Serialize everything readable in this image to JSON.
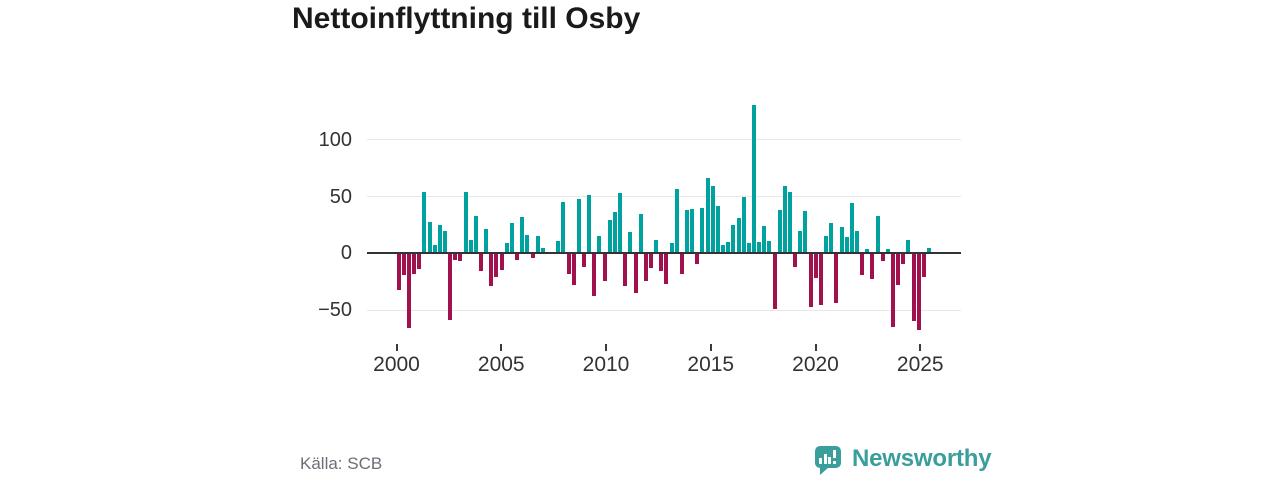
{
  "title": "Nettoinflyttning till Osby",
  "source": "Källa: SCB",
  "logo": {
    "text": "Newsworthy",
    "color": "#3a9e9c",
    "icon": "bar-chart-speech-bubble-icon"
  },
  "colors": {
    "positive_bar": "#00a2a0",
    "negative_bar": "#a0114d",
    "gridline": "#e7e7e7",
    "zero_line": "#333333",
    "axis_text": "#333333",
    "title_text": "#1a1a1a",
    "source_text": "#6b6f76"
  },
  "chart_data": {
    "type": "bar",
    "title": "Nettoinflyttning till Osby",
    "frequency": "quarterly",
    "start_year": 2000,
    "start_quarter": 1,
    "x_ticks": [
      2000,
      2005,
      2010,
      2015,
      2020,
      2025
    ],
    "y_ticks": [
      100,
      50,
      0,
      -50
    ],
    "ylim": [
      -75,
      135
    ],
    "grid": "horizontal",
    "legend": "none",
    "positive_color_meaning": "net in-migration",
    "negative_color_meaning": "net out-migration",
    "values": [
      -32,
      -19,
      -66,
      -18,
      -14,
      54,
      28,
      7,
      25,
      20,
      -59,
      -6,
      -7,
      54,
      12,
      33,
      -16,
      21,
      -29,
      -21,
      -15,
      9,
      27,
      -6,
      32,
      16,
      -4,
      15,
      5,
      0,
      0,
      11,
      45,
      -18,
      -28,
      48,
      -12,
      51,
      -38,
      15,
      -24,
      29,
      36,
      53,
      -29,
      19,
      -35,
      35,
      -24,
      -13,
      12,
      -16,
      -27,
      9,
      57,
      -18,
      38,
      39,
      -9,
      40,
      66,
      59,
      42,
      7,
      10,
      25,
      31,
      50,
      9,
      131,
      10,
      24,
      11,
      -49,
      38,
      59,
      54,
      -12,
      20,
      37,
      -47,
      -22,
      -46,
      15,
      27,
      -44,
      23,
      14,
      44,
      20,
      -19,
      4,
      -23,
      33,
      -7,
      4,
      -65,
      -28,
      -9,
      12,
      -60,
      -68,
      -21,
      5
    ]
  }
}
